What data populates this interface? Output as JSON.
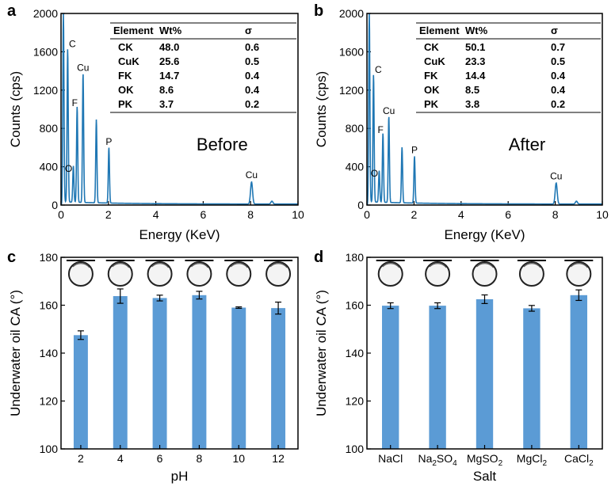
{
  "chart_data": [
    {
      "panel": "a",
      "type": "line",
      "title": "Before",
      "xlabel": "Energy (KeV)",
      "ylabel": "Counts (cps)",
      "xlim": [
        0,
        10
      ],
      "ylim": [
        0,
        2000
      ],
      "xticks": [
        0,
        2,
        4,
        6,
        8,
        10
      ],
      "yticks": [
        0,
        400,
        800,
        1200,
        1600,
        2000
      ],
      "line_color": "#1f77b4",
      "peaks": [
        {
          "x": 0.1,
          "y": 1980,
          "label": ""
        },
        {
          "x": 0.28,
          "y": 1600,
          "label": "C"
        },
        {
          "x": 0.52,
          "y": 380,
          "label": "O"
        },
        {
          "x": 0.68,
          "y": 1000,
          "label": "F"
        },
        {
          "x": 0.93,
          "y": 1350,
          "label": "Cu"
        },
        {
          "x": 1.49,
          "y": 870,
          "label": ""
        },
        {
          "x": 2.02,
          "y": 580,
          "label": "P"
        },
        {
          "x": 8.04,
          "y": 230,
          "label": "Cu"
        },
        {
          "x": 8.9,
          "y": 30,
          "label": ""
        }
      ],
      "table": {
        "headers": [
          "Element",
          "Wt%",
          "σ"
        ],
        "rows": [
          [
            "CK",
            "48.0",
            "0.6"
          ],
          [
            "CuK",
            "25.6",
            "0.5"
          ],
          [
            "FK",
            "14.7",
            "0.4"
          ],
          [
            "OK",
            "8.6",
            "0.4"
          ],
          [
            "PK",
            "3.7",
            "0.2"
          ]
        ]
      }
    },
    {
      "panel": "b",
      "type": "line",
      "title": "After",
      "xlabel": "Energy (KeV)",
      "ylabel": "Counts (cps)",
      "xlim": [
        0,
        10
      ],
      "ylim": [
        0,
        2000
      ],
      "xticks": [
        0,
        2,
        4,
        6,
        8,
        10
      ],
      "yticks": [
        0,
        400,
        800,
        1200,
        1600,
        2000
      ],
      "line_color": "#1f77b4",
      "peaks": [
        {
          "x": 0.1,
          "y": 1980,
          "label": ""
        },
        {
          "x": 0.28,
          "y": 1330,
          "label": "C"
        },
        {
          "x": 0.52,
          "y": 330,
          "label": "O"
        },
        {
          "x": 0.68,
          "y": 720,
          "label": "F"
        },
        {
          "x": 0.93,
          "y": 900,
          "label": "Cu"
        },
        {
          "x": 1.49,
          "y": 580,
          "label": ""
        },
        {
          "x": 2.02,
          "y": 490,
          "label": "P"
        },
        {
          "x": 8.04,
          "y": 220,
          "label": "Cu"
        },
        {
          "x": 8.9,
          "y": 30,
          "label": ""
        }
      ],
      "table": {
        "headers": [
          "Element",
          "Wt%",
          "σ"
        ],
        "rows": [
          [
            "CK",
            "50.1",
            "0.7"
          ],
          [
            "CuK",
            "23.3",
            "0.5"
          ],
          [
            "FK",
            "14.4",
            "0.4"
          ],
          [
            "OK",
            "8.5",
            "0.4"
          ],
          [
            "PK",
            "3.8",
            "0.2"
          ]
        ]
      }
    },
    {
      "panel": "c",
      "type": "bar",
      "xlabel": "pH",
      "ylabel": "Underwater oil CA (°)",
      "ylim": [
        100,
        180
      ],
      "yticks": [
        100,
        120,
        140,
        160,
        180
      ],
      "categories": [
        "2",
        "4",
        "6",
        "8",
        "10",
        "12"
      ],
      "values": [
        147.5,
        163.8,
        163.0,
        164.2,
        159.0,
        158.8
      ],
      "errors": [
        1.8,
        3.0,
        1.2,
        1.6,
        0.3,
        2.5
      ],
      "bar_color": "#5b9bd5"
    },
    {
      "panel": "d",
      "type": "bar",
      "xlabel": "Salt",
      "ylabel": "Underwater oil CA (°)",
      "ylim": [
        100,
        180
      ],
      "yticks": [
        100,
        120,
        140,
        160,
        180
      ],
      "categories": [
        {
          "base": "NaCl",
          "sub": ""
        },
        {
          "base": "Na",
          "sub": "2",
          "tail": "SO",
          "sub2": "4"
        },
        {
          "base": "MgSO",
          "sub": "2"
        },
        {
          "base": "MgCl",
          "sub": "2"
        },
        {
          "base": "CaCl",
          "sub": "2"
        }
      ],
      "values": [
        159.8,
        159.8,
        162.5,
        158.7,
        164.2
      ],
      "errors": [
        1.2,
        1.2,
        1.8,
        1.2,
        2.2
      ],
      "bar_color": "#5b9bd5"
    }
  ]
}
